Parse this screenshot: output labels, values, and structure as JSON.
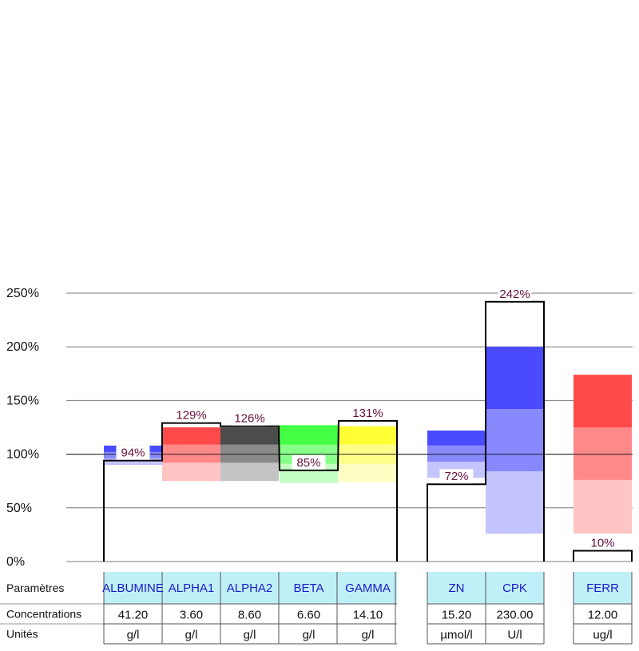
{
  "chart_data": {
    "type": "bar",
    "title": "",
    "ylabel": "",
    "xlabel": "",
    "ylim": [
      0,
      250
    ],
    "y_ticks": [
      0,
      50,
      100,
      150,
      200,
      250
    ],
    "y_tick_labels": [
      "0%",
      "50%",
      "100%",
      "150%",
      "200%",
      "250%"
    ],
    "reference_line": 100,
    "table_row_labels": [
      "Paramètres",
      "Concentrations",
      "Unités"
    ],
    "groups": [
      [
        "ALBUMINE",
        "ALPHA1",
        "ALPHA2",
        "BETA",
        "GAMMA"
      ],
      [
        "ZN",
        "CPK"
      ],
      [
        "FERR"
      ]
    ],
    "parameters": [
      {
        "name": "ALBUMINE",
        "concentration": "41.20",
        "unit": "g/l",
        "value": 94,
        "value_label": "94%",
        "bands": [
          {
            "from": 90,
            "to": 96,
            "color": "#c4c4ff"
          },
          {
            "from": 96,
            "to": 102,
            "color": "#8888ff"
          },
          {
            "from": 102,
            "to": 108,
            "color": "#4a4aff"
          }
        ]
      },
      {
        "name": "ALPHA1",
        "concentration": "3.60",
        "unit": "g/l",
        "value": 129,
        "value_label": "129%",
        "bands": [
          {
            "from": 75,
            "to": 92,
            "color": "#ffc4c4"
          },
          {
            "from": 92,
            "to": 109,
            "color": "#ff8888"
          },
          {
            "from": 109,
            "to": 125,
            "color": "#ff4a4a"
          }
        ]
      },
      {
        "name": "ALPHA2",
        "concentration": "8.60",
        "unit": "g/l",
        "value": 126,
        "value_label": "126%",
        "bands": [
          {
            "from": 75,
            "to": 92,
            "color": "#c4c4c4"
          },
          {
            "from": 92,
            "to": 109,
            "color": "#8a8a8a"
          },
          {
            "from": 109,
            "to": 125,
            "color": "#4c4c4c"
          }
        ]
      },
      {
        "name": "BETA",
        "concentration": "6.60",
        "unit": "g/l",
        "value": 85,
        "value_label": "85%",
        "bands": [
          {
            "from": 73,
            "to": 91,
            "color": "#c4ffc4"
          },
          {
            "from": 91,
            "to": 109,
            "color": "#88ff88"
          },
          {
            "from": 109,
            "to": 127,
            "color": "#44ff44"
          }
        ]
      },
      {
        "name": "GAMMA",
        "concentration": "14.10",
        "unit": "g/l",
        "value": 131,
        "value_label": "131%",
        "bands": [
          {
            "from": 74,
            "to": 91,
            "color": "#ffffc4"
          },
          {
            "from": 91,
            "to": 109,
            "color": "#ffff88"
          },
          {
            "from": 109,
            "to": 126,
            "color": "#ffff33"
          }
        ]
      },
      {
        "name": "ZN",
        "concentration": "15.20",
        "unit": "µmol/l",
        "value": 72,
        "value_label": "72%",
        "bands": [
          {
            "from": 78,
            "to": 93,
            "color": "#c4c4ff"
          },
          {
            "from": 93,
            "to": 108,
            "color": "#8888ff"
          },
          {
            "from": 108,
            "to": 122,
            "color": "#4a4aff"
          }
        ]
      },
      {
        "name": "CPK",
        "concentration": "230.00",
        "unit": "U/l",
        "value": 242,
        "value_label": "242%",
        "bands": [
          {
            "from": 26,
            "to": 84,
            "color": "#c4c4ff"
          },
          {
            "from": 84,
            "to": 142,
            "color": "#8888ff"
          },
          {
            "from": 142,
            "to": 200,
            "color": "#4a4aff"
          }
        ]
      },
      {
        "name": "FERR",
        "concentration": "12.00",
        "unit": "ug/l",
        "value": 10,
        "value_label": "10%",
        "bands": [
          {
            "from": 26,
            "to": 76,
            "color": "#ffc4c4"
          },
          {
            "from": 76,
            "to": 125,
            "color": "#ff8888"
          },
          {
            "from": 125,
            "to": 174,
            "color": "#ff4a4a"
          }
        ]
      }
    ]
  }
}
